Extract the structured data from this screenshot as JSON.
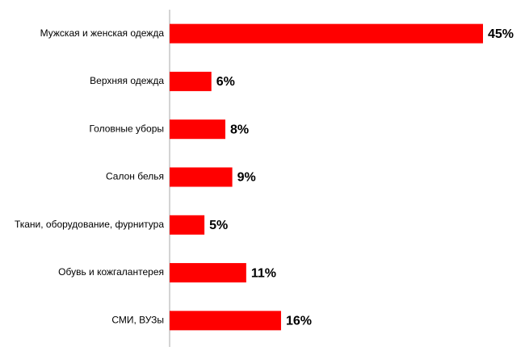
{
  "chart_data": {
    "type": "bar",
    "orientation": "horizontal",
    "categories": [
      "Мужская и женская одежда",
      "Верхняя одежда",
      "Головные уборы",
      "Салон белья",
      "Ткани, оборудование,  фурнитура",
      "Обувь и кожгалантерея",
      "СМИ, ВУЗы"
    ],
    "values": [
      45,
      6,
      8,
      9,
      5,
      11,
      16
    ],
    "value_labels": [
      "45%",
      "6%",
      "8%",
      "9%",
      "5%",
      "11%",
      "16%"
    ],
    "color": "#ff0000"
  }
}
